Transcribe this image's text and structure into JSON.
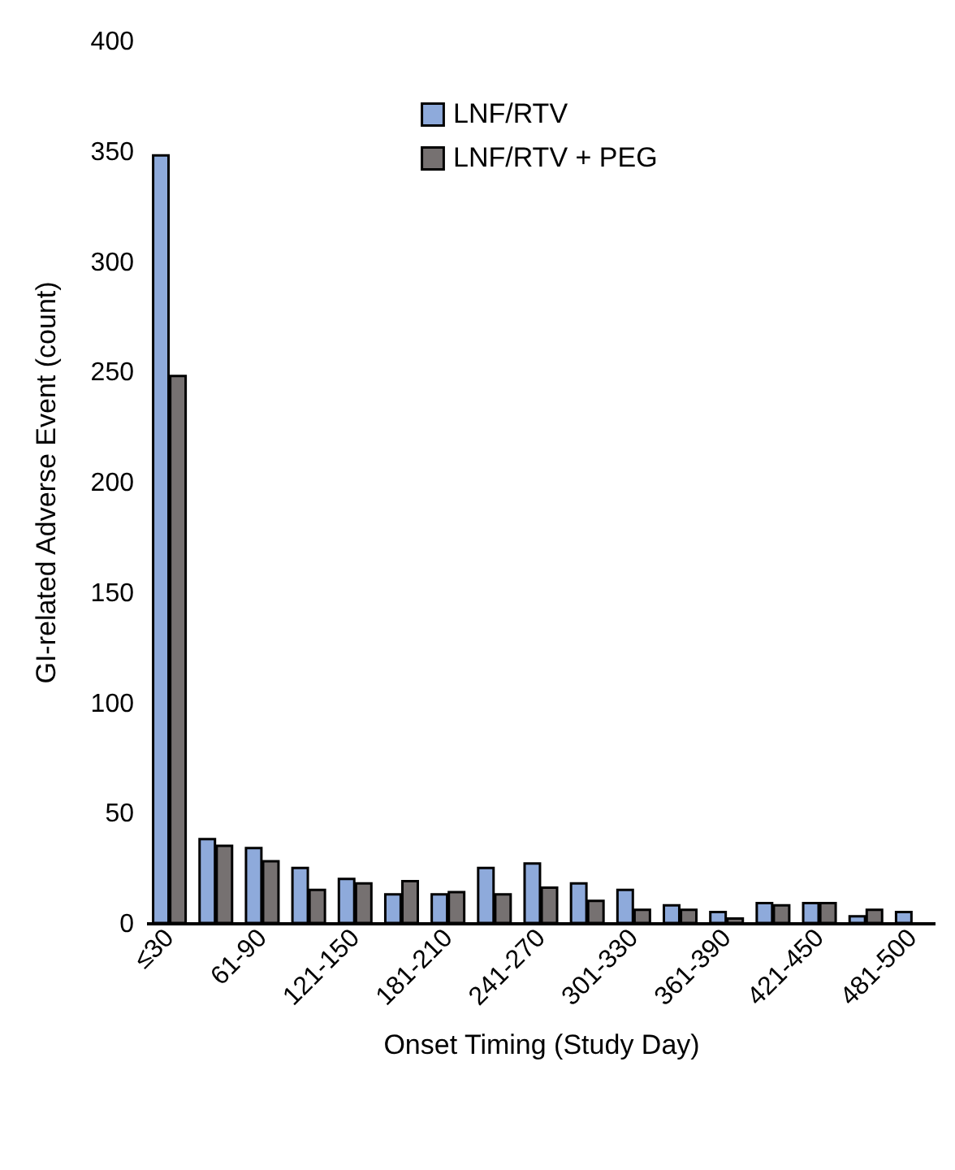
{
  "chart_data": {
    "type": "bar",
    "xlabel": "Onset Timing (Study Day)",
    "ylabel": "GI-related Adverse Event (count)",
    "categories": [
      "≤30",
      null,
      "61-90",
      null,
      "121-150",
      null,
      "181-210",
      null,
      "241-270",
      null,
      "301-330",
      null,
      "361-390",
      null,
      "421-450",
      null,
      "481-500"
    ],
    "series": [
      {
        "name": "LNF/RTV",
        "color": "#8eaadb",
        "values": [
          348,
          38,
          34,
          25,
          20,
          13,
          13,
          25,
          27,
          18,
          15,
          8,
          5,
          9,
          9,
          3,
          5
        ]
      },
      {
        "name": "LNF/RTV + PEG",
        "color": "#767171",
        "values": [
          248,
          35,
          28,
          15,
          18,
          19,
          14,
          13,
          16,
          10,
          6,
          6,
          2,
          8,
          9,
          6,
          null
        ]
      }
    ],
    "ylim": [
      0,
      400
    ],
    "yticks": [
      0,
      50,
      100,
      150,
      200,
      250,
      300,
      350,
      400
    ],
    "grid": false,
    "legend": "top right"
  }
}
